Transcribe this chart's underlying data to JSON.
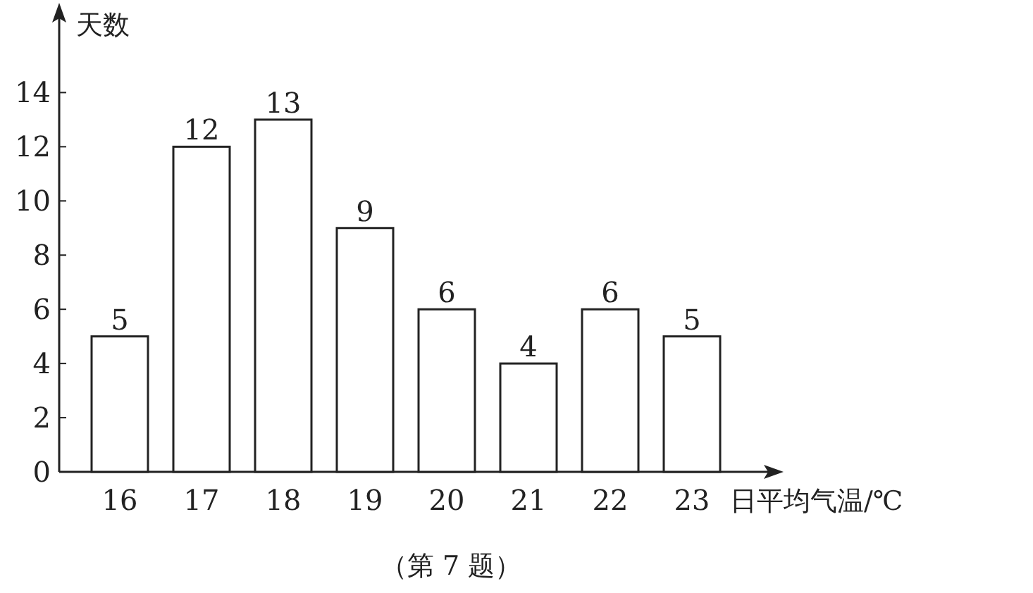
{
  "chart_data": {
    "type": "bar",
    "ylabel": "天数",
    "xlabel": "日平均气温/℃",
    "categories": [
      "16",
      "17",
      "18",
      "19",
      "20",
      "21",
      "22",
      "23"
    ],
    "values": [
      5,
      12,
      13,
      9,
      6,
      4,
      6,
      5
    ],
    "color": "#ffffff",
    "ylim": [
      0,
      17
    ],
    "yticks": [
      0,
      2,
      4,
      6,
      8,
      10,
      12,
      14
    ],
    "data_labels": true,
    "annotations": [
      "（第 7 题）"
    ]
  }
}
